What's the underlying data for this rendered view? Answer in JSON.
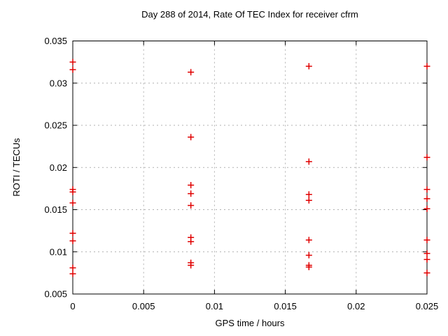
{
  "chart_data": {
    "type": "scatter",
    "title": "Day 288 of 2014, Rate Of TEC Index for receiver cfrm",
    "xlabel": "GPS time / hours",
    "ylabel": "ROTI / TECUs",
    "xlim": [
      0,
      0.025
    ],
    "ylim": [
      0.005,
      0.035
    ],
    "xticks": [
      0,
      0.005,
      0.01,
      0.015,
      0.02,
      0.025
    ],
    "xtick_labels": [
      "0",
      "0.005",
      "0.01",
      "0.015",
      "0.02",
      "0.025"
    ],
    "yticks": [
      0.005,
      0.01,
      0.015,
      0.02,
      0.025,
      0.03,
      0.035
    ],
    "ytick_labels": [
      "0.005",
      "0.01",
      "0.015",
      "0.02",
      "0.025",
      "0.03",
      "0.035"
    ],
    "grid": true,
    "legend": "none",
    "marker": "plus",
    "marker_color": "#e00000",
    "axis_color": "#000000",
    "grid_color": "#b0b0b0",
    "series": [
      {
        "name": "ROTI",
        "points": [
          [
            0,
            0.0325
          ],
          [
            0,
            0.0316
          ],
          [
            0,
            0.0174
          ],
          [
            0,
            0.0171
          ],
          [
            0,
            0.0158
          ],
          [
            0,
            0.0122
          ],
          [
            0,
            0.0113
          ],
          [
            0,
            0.0081
          ],
          [
            0,
            0.0074
          ],
          [
            0.008333,
            0.0313
          ],
          [
            0.008333,
            0.0236
          ],
          [
            0.008333,
            0.0179
          ],
          [
            0.008333,
            0.0169
          ],
          [
            0.008333,
            0.0155
          ],
          [
            0.008333,
            0.0117
          ],
          [
            0.008333,
            0.0112
          ],
          [
            0.008333,
            0.0087
          ],
          [
            0.008333,
            0.0084
          ],
          [
            0.016667,
            0.032
          ],
          [
            0.016667,
            0.0207
          ],
          [
            0.016667,
            0.0168
          ],
          [
            0.016667,
            0.0161
          ],
          [
            0.016667,
            0.0114
          ],
          [
            0.016667,
            0.0096
          ],
          [
            0.016667,
            0.0084
          ],
          [
            0.016667,
            0.0082
          ],
          [
            0.025,
            0.032
          ],
          [
            0.025,
            0.0212
          ],
          [
            0.025,
            0.0174
          ],
          [
            0.025,
            0.0163
          ],
          [
            0.025,
            0.0151
          ],
          [
            0.025,
            0.0114
          ],
          [
            0.025,
            0.0098
          ],
          [
            0.025,
            0.0091
          ],
          [
            0.025,
            0.0075
          ]
        ]
      }
    ]
  }
}
